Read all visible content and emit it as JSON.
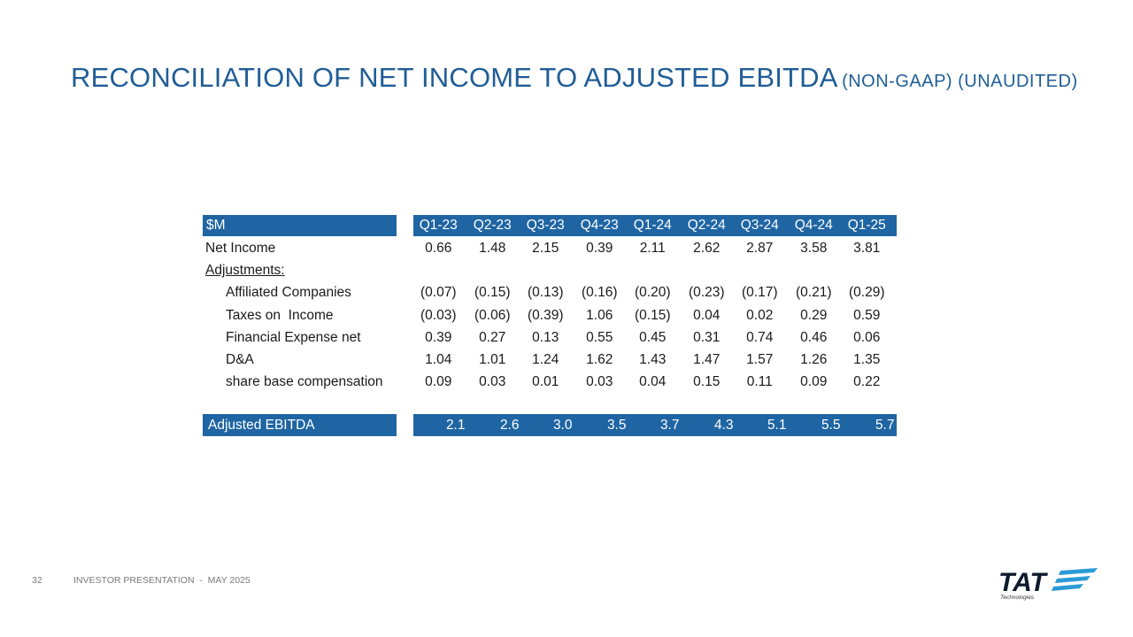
{
  "title": {
    "main": "RECONCILIATION OF NET INCOME TO ADJUSTED EBITDA",
    "sub": "(NON-GAAP) (UNAUDITED)"
  },
  "table": {
    "header_label": "$M",
    "columns": [
      "Q1-23",
      "Q2-23",
      "Q3-23",
      "Q4-23",
      "Q1-24",
      "Q2-24",
      "Q3-24",
      "Q4-24",
      "Q1-25"
    ],
    "rows": [
      {
        "label": "Net Income",
        "values": [
          "0.66",
          "1.48",
          "2.15",
          "0.39",
          "2.11",
          "2.62",
          "2.87",
          "3.58",
          "3.81"
        ]
      },
      {
        "label": "Adjustments:",
        "values": []
      },
      {
        "label": "Affiliated Companies",
        "values": [
          "(0.07)",
          "(0.15)",
          "(0.13)",
          "(0.16)",
          "(0.20)",
          "(0.23)",
          "(0.17)",
          "(0.21)",
          "(0.29)"
        ]
      },
      {
        "label": "Taxes on  Income",
        "values": [
          "(0.03)",
          "(0.06)",
          "(0.39)",
          "1.06",
          "(0.15)",
          "0.04",
          "0.02",
          "0.29",
          "0.59"
        ]
      },
      {
        "label": "Financial Expense net",
        "values": [
          "0.39",
          "0.27",
          "0.13",
          "0.55",
          "0.45",
          "0.31",
          "0.74",
          "0.46",
          "0.06"
        ]
      },
      {
        "label": "D&A",
        "values": [
          "1.04",
          "1.01",
          "1.24",
          "1.62",
          "1.43",
          "1.47",
          "1.57",
          "1.26",
          "1.35"
        ]
      },
      {
        "label": "share base compensation",
        "values": [
          "0.09",
          "0.03",
          "0.01",
          "0.03",
          "0.04",
          "0.15",
          "0.11",
          "0.09",
          "0.22"
        ]
      }
    ],
    "total": {
      "label": "Adjusted EBITDA",
      "values": [
        "2.1",
        "2.6",
        "3.0",
        "3.5",
        "3.7",
        "4.3",
        "5.1",
        "5.5",
        "5.7"
      ]
    }
  },
  "footer": {
    "page_number": "32",
    "text": "INVESTOR PRESENTATION  -  MAY 2025"
  },
  "logo": {
    "name": "TAT",
    "tagline": "Technologies"
  },
  "colors": {
    "accent": "#1f65a3",
    "title": "#1f5d96"
  }
}
